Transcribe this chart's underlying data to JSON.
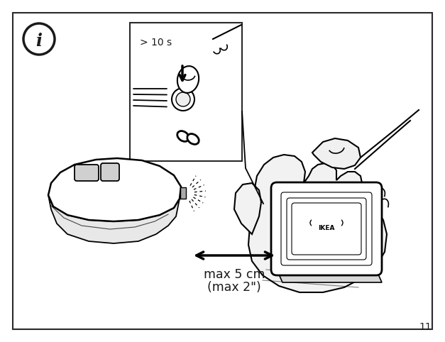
{
  "bg_color": "#ffffff",
  "border_color": "#2a2a2a",
  "text_color": "#1a1a1a",
  "page_number": "11",
  "info_icon_text": "i",
  "inset_label": "> 10 s",
  "arrow_label_line1": "max 5 cm",
  "arrow_label_line2": "(max 2\")",
  "figsize": [
    6.27,
    4.82
  ],
  "dpi": 100
}
